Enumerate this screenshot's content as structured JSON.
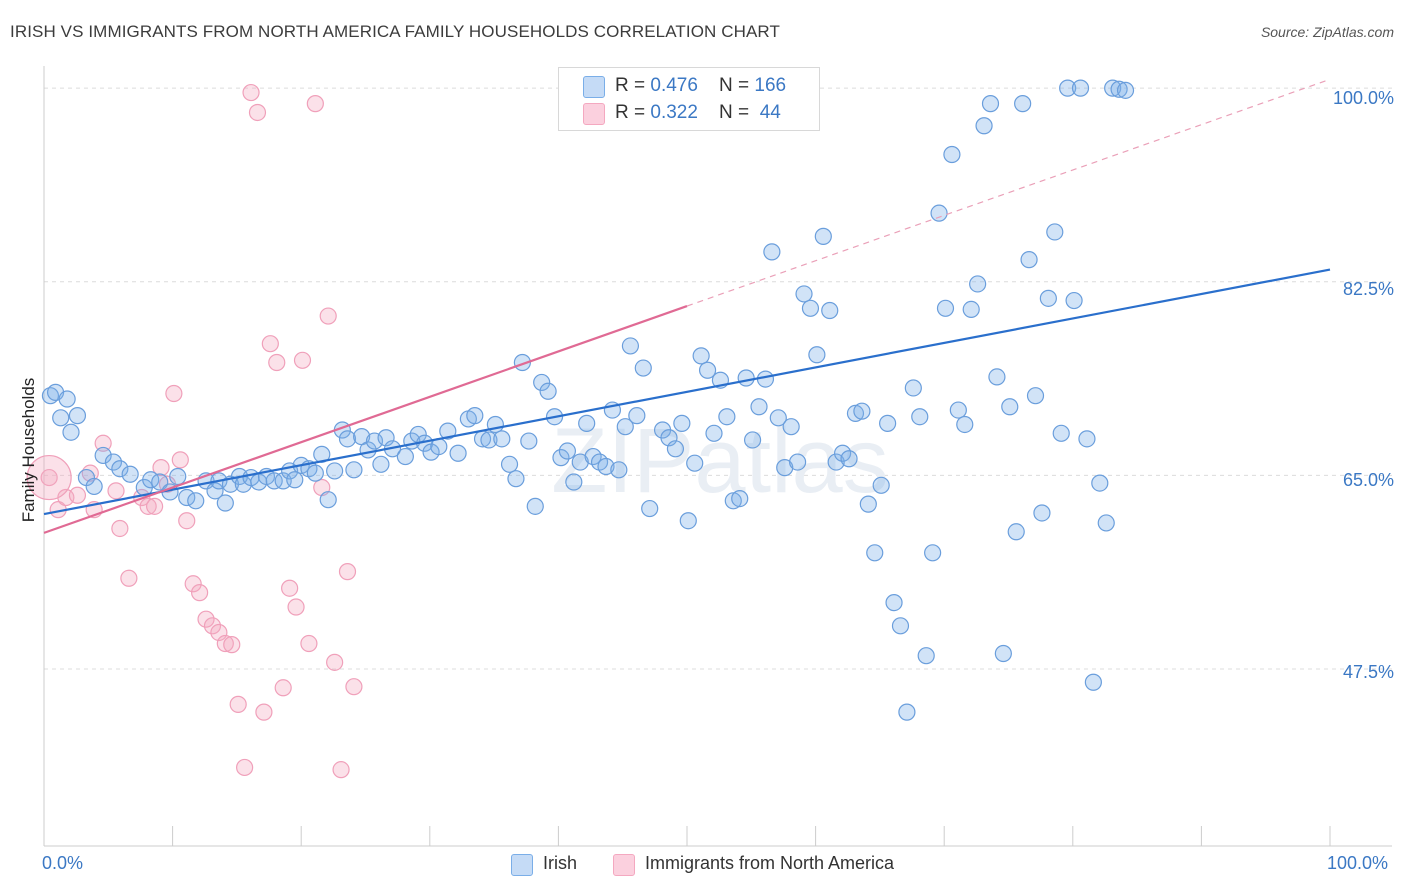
{
  "title": "IRISH VS IMMIGRANTS FROM NORTH AMERICA FAMILY HOUSEHOLDS CORRELATION CHART",
  "source": "Source: ZipAtlas.com",
  "watermark": "ZIPatlas",
  "legend": {
    "series1": {
      "r_label": "R = ",
      "r_value": "0.476",
      "n_label": "N = ",
      "n_value": "166"
    },
    "series2": {
      "r_label": "R = ",
      "r_value": "0.322",
      "n_label": "N = ",
      "n_value": " 44"
    }
  },
  "chart_data": {
    "type": "scatter",
    "title": "IRISH VS IMMIGRANTS FROM NORTH AMERICA FAMILY HOUSEHOLDS CORRELATION CHART",
    "xlabel": "",
    "ylabel": "Family Households",
    "xlim": [
      0,
      100
    ],
    "ylim": [
      31.5,
      102
    ],
    "x_tick_labels": [
      "0.0%",
      "100.0%"
    ],
    "y_ticks": [
      47.5,
      65.0,
      82.5,
      100.0
    ],
    "y_tick_labels": [
      "47.5%",
      "65.0%",
      "82.5%",
      "100.0%"
    ],
    "colors": {
      "irish": "#7aaee8",
      "irish_line": "#2a6fcc",
      "immigrants": "#f4a8c0",
      "immigrants_line": "#e06a94",
      "tick_text": "#3b78c4"
    },
    "series": [
      {
        "name": "Irish",
        "R": 0.476,
        "N": 166,
        "trend": {
          "x": [
            0,
            100
          ],
          "y": [
            61.5,
            83.6
          ]
        },
        "points": [
          [
            0.5,
            72.2
          ],
          [
            0.9,
            72.5
          ],
          [
            1.3,
            70.2
          ],
          [
            1.8,
            71.9
          ],
          [
            2.1,
            68.9
          ],
          [
            2.6,
            70.4
          ],
          [
            3.3,
            64.8
          ],
          [
            3.9,
            64.0
          ],
          [
            4.6,
            66.8
          ],
          [
            5.4,
            66.2
          ],
          [
            5.9,
            65.6
          ],
          [
            6.7,
            65.1
          ],
          [
            7.8,
            63.9
          ],
          [
            8.3,
            64.6
          ],
          [
            9.0,
            64.4
          ],
          [
            9.8,
            63.5
          ],
          [
            10.4,
            64.9
          ],
          [
            11.1,
            63.0
          ],
          [
            11.8,
            62.7
          ],
          [
            12.6,
            64.5
          ],
          [
            13.3,
            63.6
          ],
          [
            13.6,
            64.5
          ],
          [
            14.1,
            62.5
          ],
          [
            14.5,
            64.2
          ],
          [
            15.2,
            64.9
          ],
          [
            15.5,
            64.2
          ],
          [
            16.1,
            64.8
          ],
          [
            16.7,
            64.4
          ],
          [
            17.3,
            64.9
          ],
          [
            17.9,
            64.5
          ],
          [
            18.6,
            64.5
          ],
          [
            19.1,
            65.4
          ],
          [
            19.5,
            64.6
          ],
          [
            20.0,
            65.9
          ],
          [
            20.6,
            65.6
          ],
          [
            21.1,
            65.2
          ],
          [
            21.6,
            66.9
          ],
          [
            22.1,
            62.8
          ],
          [
            22.6,
            65.4
          ],
          [
            23.2,
            69.1
          ],
          [
            23.6,
            68.3
          ],
          [
            24.1,
            65.5
          ],
          [
            24.7,
            68.5
          ],
          [
            25.2,
            67.3
          ],
          [
            25.7,
            68.1
          ],
          [
            26.2,
            66.0
          ],
          [
            26.6,
            68.4
          ],
          [
            27.1,
            67.4
          ],
          [
            28.1,
            66.7
          ],
          [
            28.6,
            68.1
          ],
          [
            29.1,
            68.7
          ],
          [
            29.6,
            67.9
          ],
          [
            30.1,
            67.1
          ],
          [
            30.7,
            67.6
          ],
          [
            31.4,
            69.0
          ],
          [
            32.2,
            67.0
          ],
          [
            33.0,
            70.1
          ],
          [
            33.5,
            70.4
          ],
          [
            34.1,
            68.3
          ],
          [
            34.6,
            68.2
          ],
          [
            35.1,
            69.6
          ],
          [
            35.6,
            68.3
          ],
          [
            36.2,
            66.0
          ],
          [
            36.7,
            64.7
          ],
          [
            37.2,
            75.2
          ],
          [
            37.7,
            68.1
          ],
          [
            38.2,
            62.2
          ],
          [
            38.7,
            73.4
          ],
          [
            39.2,
            72.6
          ],
          [
            39.7,
            70.3
          ],
          [
            40.2,
            66.6
          ],
          [
            40.7,
            67.2
          ],
          [
            41.2,
            64.4
          ],
          [
            41.7,
            66.2
          ],
          [
            42.2,
            69.7
          ],
          [
            42.7,
            66.7
          ],
          [
            43.2,
            66.2
          ],
          [
            43.7,
            65.8
          ],
          [
            44.2,
            70.9
          ],
          [
            44.7,
            65.5
          ],
          [
            45.2,
            69.4
          ],
          [
            45.6,
            76.7
          ],
          [
            46.1,
            70.4
          ],
          [
            46.6,
            74.7
          ],
          [
            47.1,
            62.0
          ],
          [
            48.1,
            69.1
          ],
          [
            48.6,
            68.4
          ],
          [
            49.1,
            67.4
          ],
          [
            49.6,
            69.7
          ],
          [
            50.1,
            60.9
          ],
          [
            50.6,
            66.1
          ],
          [
            51.1,
            75.8
          ],
          [
            51.6,
            74.5
          ],
          [
            52.1,
            68.8
          ],
          [
            52.6,
            73.6
          ],
          [
            53.1,
            70.3
          ],
          [
            53.6,
            62.7
          ],
          [
            54.1,
            62.9
          ],
          [
            54.6,
            73.8
          ],
          [
            55.1,
            68.2
          ],
          [
            55.6,
            71.2
          ],
          [
            56.1,
            73.7
          ],
          [
            56.6,
            85.2
          ],
          [
            57.1,
            70.2
          ],
          [
            57.6,
            65.7
          ],
          [
            58.1,
            69.4
          ],
          [
            58.6,
            66.2
          ],
          [
            59.1,
            81.4
          ],
          [
            59.6,
            80.1
          ],
          [
            60.1,
            75.9
          ],
          [
            60.6,
            86.6
          ],
          [
            61.1,
            79.9
          ],
          [
            61.6,
            66.2
          ],
          [
            62.1,
            67.0
          ],
          [
            62.6,
            66.5
          ],
          [
            63.1,
            70.6
          ],
          [
            63.6,
            70.8
          ],
          [
            64.1,
            62.4
          ],
          [
            64.6,
            58.0
          ],
          [
            65.1,
            64.1
          ],
          [
            65.6,
            69.7
          ],
          [
            66.1,
            53.5
          ],
          [
            66.6,
            51.4
          ],
          [
            67.1,
            43.6
          ],
          [
            67.6,
            72.9
          ],
          [
            68.1,
            70.3
          ],
          [
            68.6,
            48.7
          ],
          [
            69.1,
            58.0
          ],
          [
            69.6,
            88.7
          ],
          [
            70.1,
            80.1
          ],
          [
            70.6,
            94.0
          ],
          [
            71.1,
            70.9
          ],
          [
            71.6,
            69.6
          ],
          [
            72.1,
            80.0
          ],
          [
            72.6,
            82.3
          ],
          [
            73.1,
            96.6
          ],
          [
            73.6,
            98.6
          ],
          [
            74.1,
            73.9
          ],
          [
            74.6,
            48.9
          ],
          [
            75.1,
            71.2
          ],
          [
            75.6,
            59.9
          ],
          [
            76.1,
            98.6
          ],
          [
            76.6,
            84.5
          ],
          [
            77.1,
            72.2
          ],
          [
            77.6,
            61.6
          ],
          [
            78.1,
            81.0
          ],
          [
            78.6,
            87.0
          ],
          [
            79.1,
            68.8
          ],
          [
            79.6,
            100.0
          ],
          [
            80.1,
            80.8
          ],
          [
            80.6,
            100.0
          ],
          [
            81.1,
            68.3
          ],
          [
            81.6,
            46.3
          ],
          [
            82.1,
            64.3
          ],
          [
            82.6,
            60.7
          ],
          [
            83.1,
            100.0
          ],
          [
            83.6,
            99.9
          ],
          [
            84.1,
            99.8
          ]
        ]
      },
      {
        "name": "Immigrants from North America",
        "R": 0.322,
        "N": 44,
        "trend": {
          "x": [
            0,
            50
          ],
          "y": [
            59.8,
            80.3
          ],
          "dashed_extension": {
            "x": [
              50,
              100
            ],
            "y": [
              80.3,
              100.8
            ]
          }
        },
        "points": [
          [
            0.4,
            64.8
          ],
          [
            1.1,
            61.9
          ],
          [
            1.7,
            63.0
          ],
          [
            2.6,
            63.2
          ],
          [
            3.6,
            65.2
          ],
          [
            3.9,
            61.9
          ],
          [
            4.6,
            67.9
          ],
          [
            5.6,
            63.6
          ],
          [
            5.9,
            60.2
          ],
          [
            6.6,
            55.7
          ],
          [
            7.6,
            63.0
          ],
          [
            8.1,
            62.2
          ],
          [
            8.6,
            62.2
          ],
          [
            9.1,
            65.7
          ],
          [
            9.6,
            64.2
          ],
          [
            10.1,
            72.4
          ],
          [
            10.6,
            66.4
          ],
          [
            11.1,
            60.9
          ],
          [
            11.6,
            55.2
          ],
          [
            12.1,
            54.4
          ],
          [
            12.6,
            52.0
          ],
          [
            13.1,
            51.4
          ],
          [
            13.6,
            50.8
          ],
          [
            14.1,
            49.8
          ],
          [
            14.6,
            49.7
          ],
          [
            15.1,
            44.3
          ],
          [
            15.6,
            38.6
          ],
          [
            16.1,
            99.6
          ],
          [
            16.6,
            97.8
          ],
          [
            17.1,
            43.6
          ],
          [
            17.6,
            76.9
          ],
          [
            18.1,
            75.2
          ],
          [
            18.6,
            45.8
          ],
          [
            19.1,
            54.8
          ],
          [
            19.6,
            53.1
          ],
          [
            20.1,
            75.4
          ],
          [
            20.6,
            49.8
          ],
          [
            21.1,
            98.6
          ],
          [
            21.6,
            63.9
          ],
          [
            22.1,
            79.4
          ],
          [
            22.6,
            48.1
          ],
          [
            23.1,
            38.4
          ],
          [
            23.6,
            56.3
          ],
          [
            24.1,
            45.9
          ]
        ]
      }
    ]
  }
}
